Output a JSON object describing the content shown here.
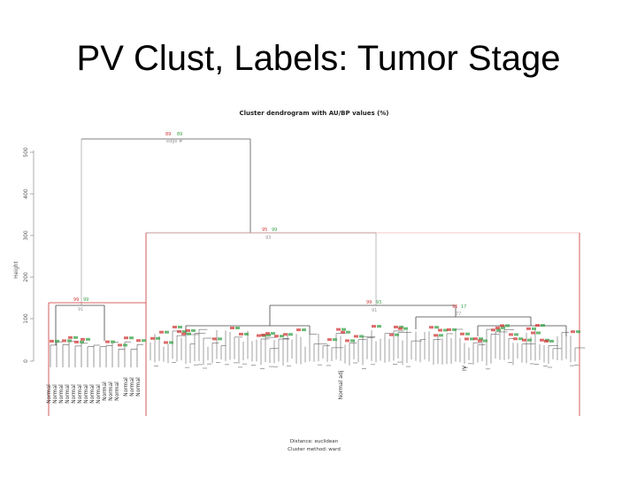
{
  "slide": {
    "title": "PV Clust, Labels: Tumor Stage"
  },
  "plot": {
    "title": "Cluster dendrogram with AU/BP values (%)",
    "ylabel": "Height",
    "yticks": [
      "0",
      "100",
      "200",
      "300",
      "400",
      "500"
    ],
    "footer_distance": "Distance: euclidean",
    "footer_method": "Cluster method: ward",
    "colors": {
      "branch": "#444444",
      "highlight": "#cc3333",
      "au": "#d23a3a",
      "bp": "#3aa34a",
      "edge": "#9a9a9a"
    }
  },
  "top_nodes": {
    "root": {
      "au": "89",
      "bp": "89",
      "edge": "edge #"
    },
    "right": {
      "au": "95",
      "bp": "99",
      "edge": "93"
    },
    "left": {
      "au": "99",
      "bp": "99",
      "edge": "91"
    },
    "mid": {
      "au": "99",
      "bp": "93",
      "edge": "91"
    },
    "midright": {
      "au": "96",
      "bp": "17",
      "edge": "77"
    }
  },
  "leaf_labels": {
    "normal": [
      "Normal",
      "Normal",
      "Normal",
      "Normal",
      "Normal",
      "Normal",
      "Normal",
      "Normal",
      "Normal",
      "Normal",
      "Normal",
      "Normal",
      "Normal",
      "Normal",
      "Normal"
    ],
    "normal_adj": "Normal adj",
    "roman": "IV"
  }
}
